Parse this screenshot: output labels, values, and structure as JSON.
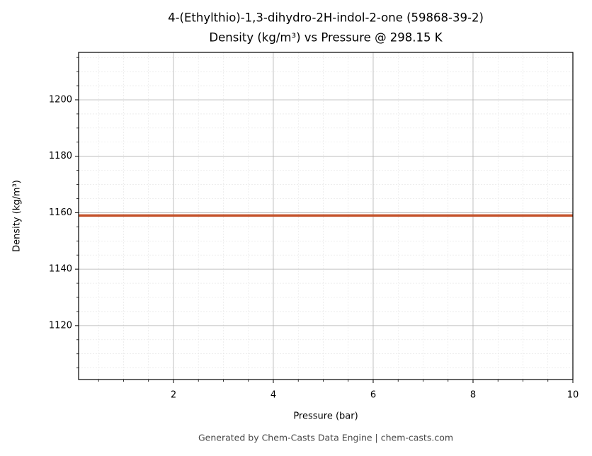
{
  "chart_data": {
    "type": "line",
    "title": "4-(Ethylthio)-1,3-dihydro-2H-indol-2-one (59868-39-2)",
    "subtitle": "Density (kg/m³) vs Pressure @ 298.15 K",
    "x_label": "Pressure (bar)",
    "y_label": "Density (kg/m³)",
    "x": [
      0.1,
      10
    ],
    "series": [
      {
        "name": "Density",
        "color": "#c4522a",
        "values": [
          1159,
          1159
        ]
      }
    ],
    "xlim": [
      0.1,
      10
    ],
    "ylim": [
      1100.9,
      1216.8
    ],
    "xticks": [
      2,
      4,
      6,
      8,
      10
    ],
    "yticks": [
      1120,
      1140,
      1160,
      1180,
      1200
    ],
    "xminorticks": [
      0.5,
      1,
      1.5,
      2.5,
      3,
      3.5,
      4.5,
      5,
      5.5,
      6.5,
      7,
      7.5,
      8.5,
      9,
      9.5
    ],
    "yminorticks": [
      1105,
      1110,
      1115,
      1125,
      1130,
      1135,
      1145,
      1150,
      1155,
      1165,
      1170,
      1175,
      1185,
      1190,
      1195,
      1205,
      1210,
      1215
    ],
    "grid": true,
    "footer": "Generated by Chem-Casts Data Engine | chem-casts.com"
  }
}
